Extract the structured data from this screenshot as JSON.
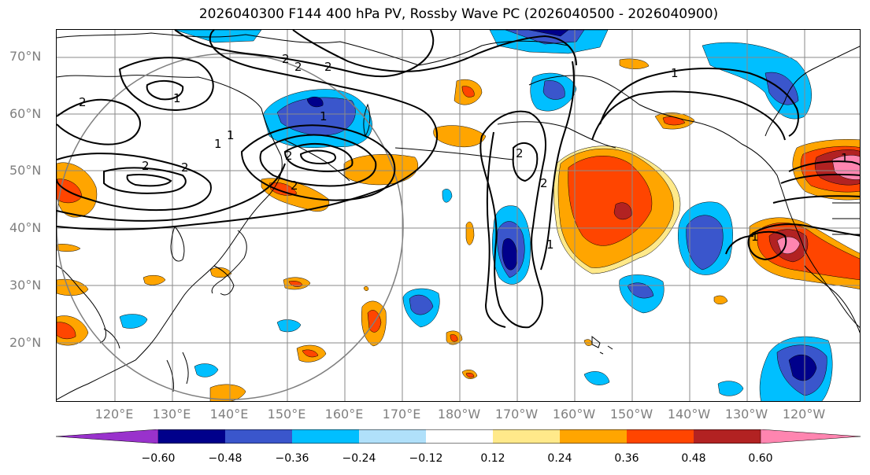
{
  "title": "2026040300 F144 400 hPa PV, Rossby Wave PC (2026040500 - 2026040900)",
  "lat_labels": [
    "70°N",
    "60°N",
    "50°N",
    "40°N",
    "30°N",
    "20°N"
  ],
  "lon_labels": [
    "120°E",
    "130°E",
    "140°E",
    "150°E",
    "160°E",
    "170°E",
    "180°W",
    "170°W",
    "160°W",
    "150°W",
    "140°W",
    "130°W",
    "120°W"
  ],
  "contour_labels": [
    "2",
    "2",
    "1",
    "2",
    "1",
    "2",
    "2",
    "1",
    "2",
    "2",
    "2",
    "1",
    "2",
    "1",
    "1",
    "1",
    "1",
    "2"
  ],
  "colorbar": {
    "ticks": [
      "−0.60",
      "−0.48",
      "−0.36",
      "−0.24",
      "−0.12",
      "0.12",
      "0.24",
      "0.36",
      "0.48",
      "0.60"
    ],
    "colors": [
      "#9932cc",
      "#00008b",
      "#3a56cc",
      "#00bfff",
      "#b0e0fa",
      "#ffffff",
      "#ffe98a",
      "#ffa500",
      "#ff4500",
      "#b22222",
      "#ff85b0"
    ]
  }
}
